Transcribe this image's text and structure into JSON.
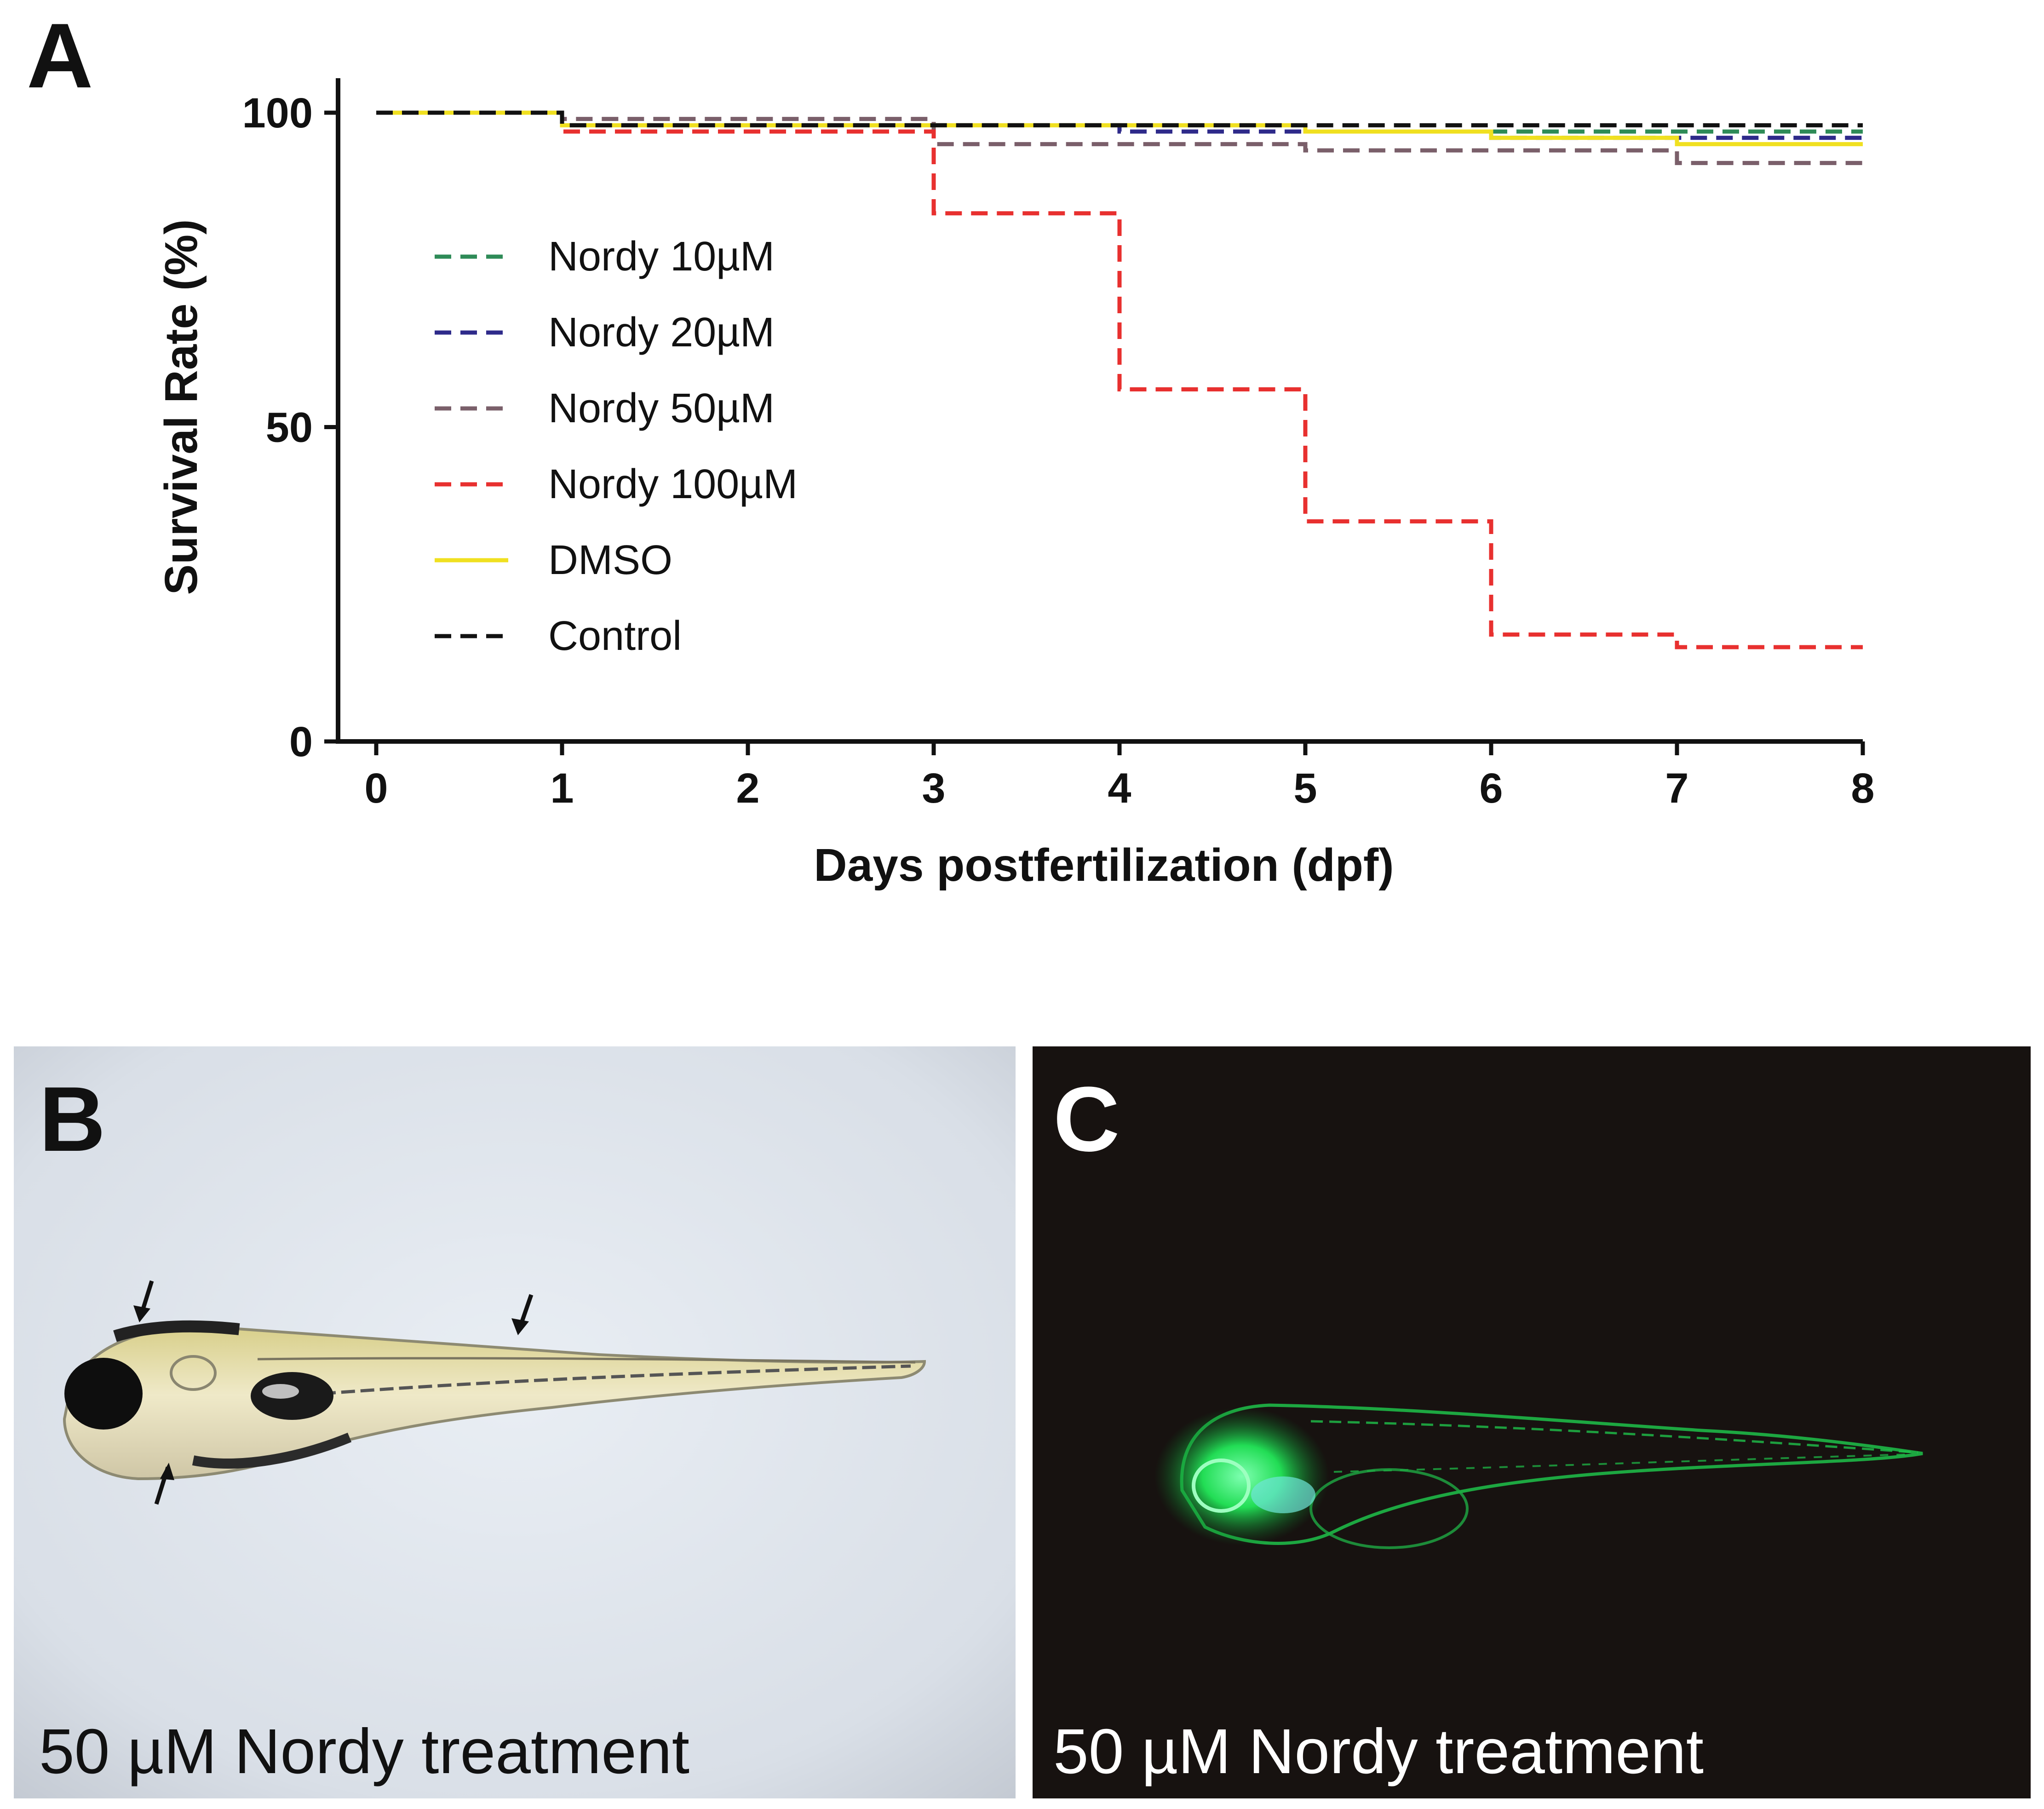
{
  "panels": {
    "a": "A",
    "b": "B",
    "c": "C"
  },
  "captions": {
    "b": "50 µM Nordy treatment",
    "c": "50 µM Nordy treatment"
  },
  "chart_data": {
    "type": "line",
    "step": true,
    "title": "",
    "xlabel": "Days postfertilization (dpf)",
    "ylabel": "Survival Rate (%)",
    "xlim": [
      0,
      8
    ],
    "ylim": [
      0,
      100
    ],
    "xticks": [
      "0",
      "1",
      "2",
      "3",
      "4",
      "5",
      "6",
      "7",
      "8"
    ],
    "yticks": [
      "0",
      "50",
      "100"
    ],
    "grid": false,
    "legend_position": "left-center",
    "series": [
      {
        "name": "Nordy 10µM",
        "color": "#2e8b57",
        "dash": "dashed",
        "x": [
          0,
          1,
          3,
          5,
          7,
          8
        ],
        "y": [
          100,
          98,
          98,
          97,
          97,
          97
        ]
      },
      {
        "name": "Nordy 20µM",
        "color": "#2e2a8a",
        "dash": "dashed",
        "x": [
          0,
          1,
          3,
          4,
          5,
          6,
          7,
          8
        ],
        "y": [
          100,
          98,
          98,
          97,
          97,
          96,
          96,
          96
        ]
      },
      {
        "name": "Nordy 50µM",
        "color": "#7a5f6a",
        "dash": "dashed",
        "x": [
          0,
          1,
          3,
          5,
          7,
          8
        ],
        "y": [
          100,
          99,
          95,
          94,
          92,
          92
        ]
      },
      {
        "name": "Nordy 100µM",
        "color": "#e8302f",
        "dash": "dashed",
        "x": [
          0,
          1,
          3,
          4,
          5,
          6,
          7,
          8
        ],
        "y": [
          100,
          97,
          84,
          56,
          35,
          17,
          15,
          15
        ]
      },
      {
        "name": "DMSO",
        "color": "#f0e020",
        "dash": "solid",
        "x": [
          0,
          1,
          3,
          5,
          6,
          7,
          8
        ],
        "y": [
          100,
          98,
          98,
          97,
          96,
          95,
          95
        ]
      },
      {
        "name": "Control",
        "color": "#111111",
        "dash": "dashed",
        "x": [
          0,
          1,
          3,
          5,
          8
        ],
        "y": [
          100,
          98,
          98,
          98,
          98
        ]
      }
    ]
  }
}
